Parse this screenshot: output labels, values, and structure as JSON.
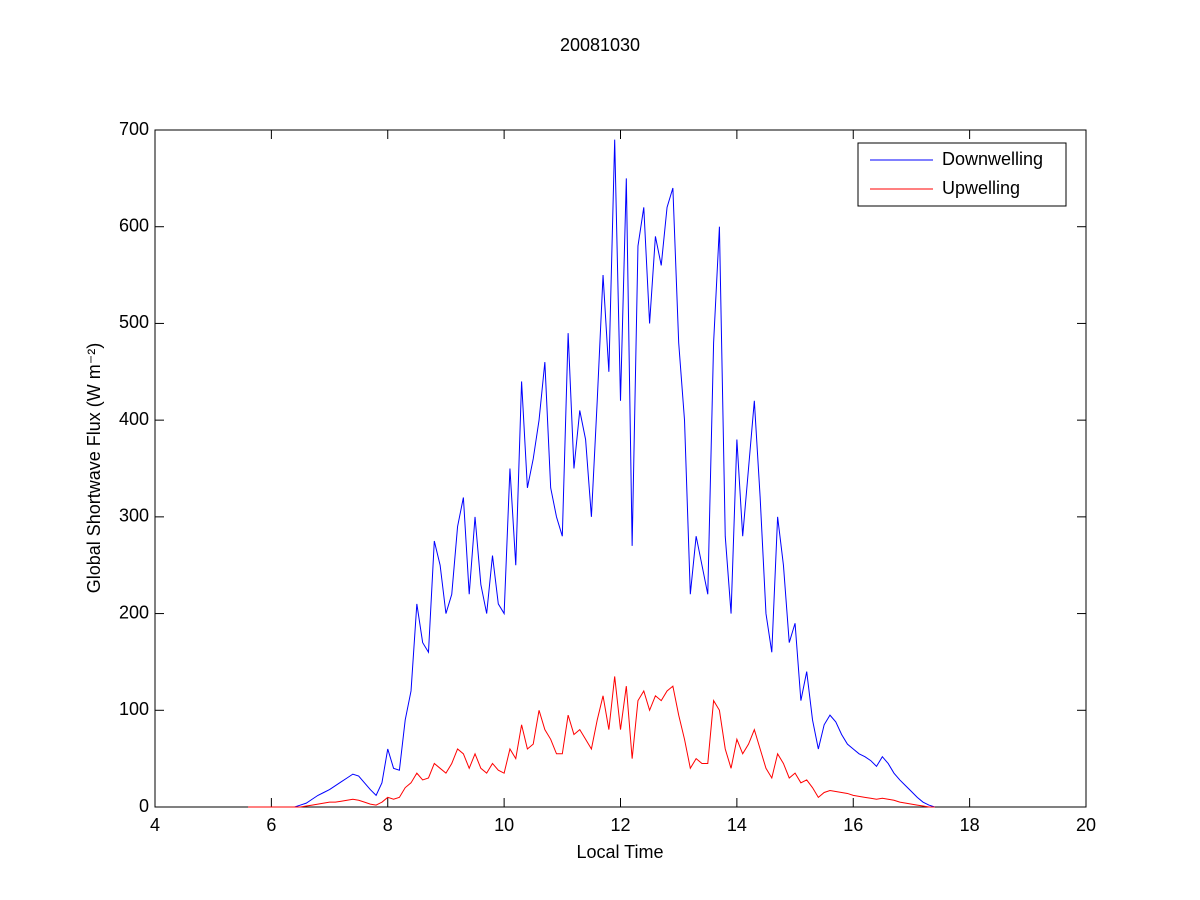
{
  "chart_data": {
    "type": "line",
    "title": "20081030",
    "xlabel": "Local Time",
    "ylabel": "Global Shortwave Flux (W m⁻²)",
    "x": [
      5.6,
      5.7,
      5.8,
      5.9,
      6.0,
      6.1,
      6.2,
      6.3,
      6.4,
      6.5,
      6.6,
      6.7,
      6.8,
      6.9,
      7.0,
      7.1,
      7.2,
      7.3,
      7.4,
      7.5,
      7.6,
      7.7,
      7.8,
      7.9,
      8.0,
      8.1,
      8.2,
      8.3,
      8.4,
      8.5,
      8.6,
      8.7,
      8.8,
      8.9,
      9.0,
      9.1,
      9.2,
      9.3,
      9.4,
      9.5,
      9.6,
      9.7,
      9.8,
      9.9,
      10.0,
      10.1,
      10.2,
      10.3,
      10.4,
      10.5,
      10.6,
      10.7,
      10.8,
      10.9,
      11.0,
      11.1,
      11.2,
      11.3,
      11.4,
      11.5,
      11.6,
      11.7,
      11.8,
      11.9,
      12.0,
      12.1,
      12.2,
      12.3,
      12.4,
      12.5,
      12.6,
      12.7,
      12.8,
      12.9,
      13.0,
      13.1,
      13.2,
      13.3,
      13.4,
      13.5,
      13.6,
      13.7,
      13.8,
      13.9,
      14.0,
      14.1,
      14.2,
      14.3,
      14.4,
      14.5,
      14.6,
      14.7,
      14.8,
      14.9,
      15.0,
      15.1,
      15.2,
      15.3,
      15.4,
      15.5,
      15.6,
      15.7,
      15.8,
      15.9,
      16.0,
      16.1,
      16.2,
      16.3,
      16.4,
      16.5,
      16.6,
      16.7,
      16.8,
      16.9,
      17.0,
      17.1,
      17.2,
      17.3,
      17.4
    ],
    "series": [
      {
        "name": "Downwelling",
        "color": "#0000ff",
        "values": [
          0,
          0,
          0,
          0,
          0,
          0,
          0,
          0,
          0,
          2,
          4,
          8,
          12,
          15,
          18,
          22,
          26,
          30,
          34,
          32,
          25,
          18,
          12,
          25,
          60,
          40,
          38,
          90,
          120,
          210,
          170,
          160,
          275,
          250,
          200,
          220,
          290,
          320,
          220,
          300,
          230,
          200,
          260,
          210,
          200,
          350,
          250,
          440,
          330,
          360,
          400,
          460,
          330,
          300,
          280,
          490,
          350,
          410,
          380,
          300,
          420,
          550,
          450,
          690,
          420,
          650,
          270,
          580,
          620,
          500,
          590,
          560,
          620,
          640,
          480,
          400,
          220,
          280,
          250,
          220,
          480,
          600,
          280,
          200,
          380,
          280,
          350,
          420,
          320,
          200,
          160,
          300,
          250,
          170,
          190,
          110,
          140,
          90,
          60,
          85,
          95,
          88,
          75,
          65,
          60,
          55,
          52,
          48,
          42,
          52,
          45,
          35,
          28,
          22,
          16,
          10,
          5,
          2,
          0
        ]
      },
      {
        "name": "Upwelling",
        "color": "#ff0000",
        "values": [
          0,
          0,
          0,
          0,
          0,
          0,
          0,
          0,
          0,
          0,
          1,
          2,
          3,
          4,
          5,
          5,
          6,
          7,
          8,
          7,
          5,
          3,
          2,
          5,
          10,
          8,
          10,
          20,
          25,
          35,
          28,
          30,
          45,
          40,
          35,
          45,
          60,
          55,
          40,
          55,
          40,
          35,
          45,
          38,
          35,
          60,
          50,
          85,
          60,
          65,
          100,
          80,
          70,
          55,
          55,
          95,
          75,
          80,
          70,
          60,
          90,
          115,
          80,
          135,
          80,
          125,
          50,
          110,
          120,
          100,
          115,
          110,
          120,
          125,
          95,
          70,
          40,
          50,
          45,
          45,
          110,
          100,
          60,
          40,
          70,
          55,
          65,
          80,
          60,
          40,
          30,
          55,
          45,
          30,
          35,
          25,
          28,
          20,
          10,
          15,
          17,
          16,
          15,
          14,
          12,
          11,
          10,
          9,
          8,
          9,
          8,
          7,
          5,
          4,
          3,
          2,
          1,
          0,
          0
        ]
      }
    ],
    "xlim": [
      4,
      20
    ],
    "xticks": [
      4,
      6,
      8,
      10,
      12,
      14,
      16,
      18,
      20
    ],
    "ylim": [
      0,
      700
    ],
    "yticks": [
      0,
      100,
      200,
      300,
      400,
      500,
      600,
      700
    ],
    "grid": false,
    "legend": "northeast"
  }
}
